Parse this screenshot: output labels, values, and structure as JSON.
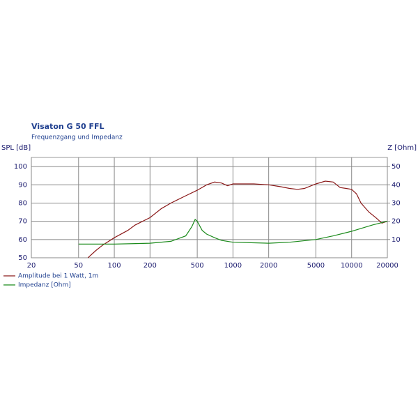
{
  "chart_data": {
    "type": "line",
    "title": "Visaton G 50 FFL",
    "subtitle": "Frequenzgang und Impedanz",
    "y_label": "SPL [dB]",
    "y2_label": "Z [Ohm]",
    "log_x": true,
    "grid": true,
    "xlim": [
      20,
      20000
    ],
    "xticks": [
      20,
      50,
      100,
      200,
      500,
      1000,
      2000,
      5000,
      10000,
      20000
    ],
    "ylim": [
      50,
      105
    ],
    "yticks": [
      50,
      60,
      70,
      80,
      90,
      100
    ],
    "y2lim": [
      0,
      55
    ],
    "y2ticks": [
      10,
      20,
      30,
      40,
      50
    ],
    "series": [
      {
        "name": "Amplitude bei 1 Watt, 1m",
        "color": "#8b1a1a",
        "x": [
          60,
          70,
          80,
          100,
          130,
          150,
          200,
          250,
          300,
          400,
          500,
          600,
          700,
          800,
          900,
          1000,
          1500,
          2000,
          2500,
          3000,
          3500,
          4000,
          5000,
          6000,
          7000,
          8000,
          9000,
          10000,
          11000,
          12000,
          14000,
          16000,
          18000,
          20000
        ],
        "values": [
          50,
          54,
          57,
          61,
          65,
          68,
          72,
          77,
          80,
          84,
          87,
          90,
          91.5,
          91,
          89.5,
          90.5,
          90.5,
          90,
          89,
          88,
          87.5,
          88,
          90.5,
          92,
          91.5,
          88.5,
          88,
          87.5,
          85,
          80,
          75,
          72,
          69,
          70
        ]
      },
      {
        "name": "Impedanz [Ohm]",
        "color": "#1a8a1a",
        "axis": "y2",
        "x": [
          50,
          100,
          200,
          300,
          400,
          450,
          480,
          500,
          550,
          600,
          700,
          800,
          1000,
          2000,
          3000,
          5000,
          7000,
          10000,
          15000,
          20000
        ],
        "values": [
          7.5,
          7.5,
          8,
          9,
          12,
          17,
          21,
          20,
          15,
          13,
          11,
          9.5,
          8.5,
          8,
          8.5,
          10,
          12,
          14.5,
          18,
          20
        ]
      }
    ]
  }
}
